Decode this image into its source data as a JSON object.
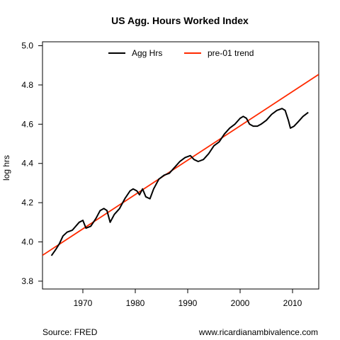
{
  "chart_data": {
    "type": "line",
    "title": "US Agg. Hours Worked Index",
    "xlabel": "",
    "ylabel": "log hrs",
    "xlim": [
      1962.3,
      2015.0
    ],
    "ylim": [
      3.76,
      5.02
    ],
    "xticks": [
      1970,
      1980,
      1990,
      2000,
      2010
    ],
    "yticks": [
      "3.8",
      "4.0",
      "4.2",
      "4.4",
      "4.6",
      "4.8",
      "5.0"
    ],
    "grid": false,
    "legend_position": "top-center",
    "series": [
      {
        "name": "Agg Hrs",
        "color": "#000000",
        "x": [
          1964.0,
          1964.8,
          1965.5,
          1966.2,
          1967.0,
          1968.0,
          1969.3,
          1970.0,
          1970.6,
          1971.5,
          1972.5,
          1973.3,
          1974.0,
          1974.6,
          1975.2,
          1976.0,
          1977.0,
          1978.0,
          1979.0,
          1979.6,
          1980.3,
          1980.8,
          1981.4,
          1982.0,
          1982.8,
          1983.5,
          1984.5,
          1985.5,
          1986.5,
          1987.5,
          1988.5,
          1989.5,
          1990.5,
          1991.2,
          1992.0,
          1993.0,
          1994.0,
          1995.0,
          1996.0,
          1997.0,
          1998.0,
          1999.0,
          2000.0,
          2000.6,
          2001.2,
          2001.8,
          2002.5,
          2003.3,
          2004.0,
          2005.0,
          2006.0,
          2007.0,
          2008.0,
          2008.6,
          2009.2,
          2009.6,
          2010.3,
          2011.0,
          2012.0,
          2013.0
        ],
        "values": [
          3.93,
          3.96,
          3.99,
          4.03,
          4.05,
          4.06,
          4.1,
          4.11,
          4.07,
          4.08,
          4.12,
          4.16,
          4.17,
          4.16,
          4.1,
          4.14,
          4.17,
          4.22,
          4.26,
          4.27,
          4.26,
          4.24,
          4.27,
          4.23,
          4.22,
          4.27,
          4.32,
          4.34,
          4.35,
          4.38,
          4.41,
          4.43,
          4.44,
          4.42,
          4.41,
          4.42,
          4.45,
          4.49,
          4.51,
          4.55,
          4.58,
          4.6,
          4.63,
          4.64,
          4.63,
          4.6,
          4.59,
          4.59,
          4.6,
          4.62,
          4.65,
          4.67,
          4.68,
          4.67,
          4.62,
          4.58,
          4.59,
          4.61,
          4.64,
          4.66
        ]
      },
      {
        "name": "pre-01 trend",
        "color": "#ff2a00",
        "x": [
          1962.3,
          2015.0
        ],
        "values": [
          3.932,
          4.854
        ]
      }
    ]
  },
  "footer": {
    "source": "Source: FRED",
    "site": "www.ricardianambivalence.com"
  }
}
